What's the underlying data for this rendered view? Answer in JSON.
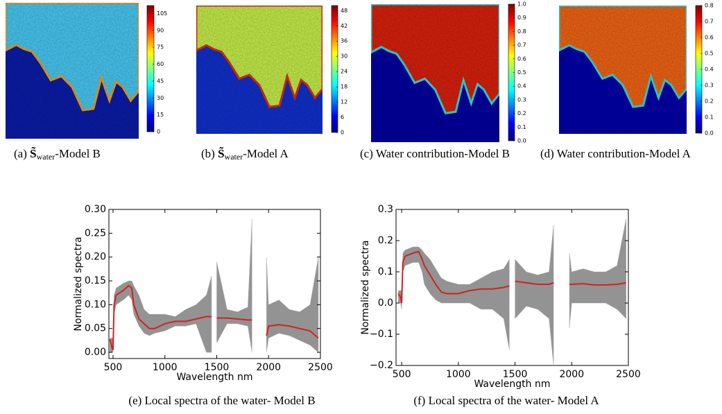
{
  "panels": [
    {
      "caption": {
        "label": "(a)",
        "symbol": "S̃",
        "subscript": "water",
        "text": "-Model B"
      },
      "colorbar": {
        "lim": [
          0,
          112
        ],
        "ticks": [
          0,
          15,
          30,
          45,
          60,
          75,
          90,
          105
        ]
      }
    },
    {
      "caption": {
        "label": "(b)",
        "symbol": "S̃",
        "subscript": "water",
        "text": "-Model A"
      },
      "colorbar": {
        "lim": [
          0,
          50
        ],
        "ticks": [
          0,
          6,
          12,
          18,
          24,
          30,
          36,
          42,
          48
        ]
      }
    },
    {
      "caption": {
        "label": "(c)",
        "text": "Water contribution-Model B"
      },
      "colorbar": {
        "lim": [
          0,
          1
        ],
        "ticks": [
          {
            "value": 0,
            "label": "0.0"
          },
          0.1,
          0.2,
          0.3,
          0.4,
          0.5,
          0.6,
          0.7,
          0.8,
          0.9,
          {
            "value": 1,
            "label": "1.0"
          }
        ]
      }
    },
    {
      "caption": {
        "label": "(d)",
        "text": "Water contribution-Model A"
      },
      "colorbar": {
        "lim": [
          0,
          0.8
        ],
        "ticks": [
          {
            "value": 0,
            "label": "0.0"
          },
          0.1,
          0.2,
          0.3,
          0.4,
          0.5,
          0.6,
          0.7,
          0.8
        ]
      }
    }
  ],
  "chart_data": [
    {
      "type": "line",
      "caption": "(e) Local spectra of the water- Model B",
      "xlabel": "Wavelength nm",
      "ylabel": "Normalized spectra",
      "xlim": [
        460,
        2500
      ],
      "ylim": [
        -0.013,
        0.3
      ],
      "xticks": [
        500,
        1000,
        1500,
        2000,
        2500
      ],
      "yticks": [
        {
          "value": 0,
          "label": "0.00"
        },
        {
          "value": 0.05,
          "label": "0.05"
        },
        {
          "value": 0.1,
          "label": "0.10"
        },
        {
          "value": 0.15,
          "label": "0.15"
        },
        {
          "value": 0.2,
          "label": "0.20"
        },
        {
          "value": 0.25,
          "label": "0.25"
        },
        {
          "value": 0.3,
          "label": "0.30"
        }
      ],
      "x": [
        470,
        490,
        500,
        510,
        530,
        600,
        650,
        680,
        700,
        750,
        800,
        850,
        900,
        1000,
        1100,
        1200,
        1300,
        1400,
        1450,
        1475,
        1500,
        1600,
        1700,
        1800,
        1840,
        1900,
        1980,
        2000,
        2100,
        2200,
        2300,
        2400,
        2480
      ],
      "band": {
        "color": "#808080",
        "upper": [
          0.03,
          0.03,
          0.03,
          0.12,
          0.135,
          0.145,
          0.15,
          0.15,
          0.14,
          0.12,
          0.09,
          0.08,
          0.08,
          0.08,
          0.075,
          0.09,
          0.1,
          0.12,
          0.16,
          null,
          0.19,
          0.09,
          0.085,
          0.095,
          0.28,
          null,
          0.2,
          0.1,
          0.11,
          0.09,
          0.085,
          0.1,
          0.2
        ],
        "lower": [
          0.0,
          0.0,
          0.0,
          0.08,
          0.1,
          0.11,
          0.12,
          0.11,
          0.08,
          0.055,
          0.04,
          0.035,
          0.04,
          0.045,
          0.055,
          0.055,
          0.06,
          0.0,
          0.0,
          null,
          0.02,
          0.06,
          0.06,
          0.055,
          0.0,
          null,
          0.0,
          0.03,
          0.04,
          0.035,
          0.025,
          0.015,
          0.0
        ]
      },
      "series": [
        {
          "color": "#d42020",
          "values": [
            0.027,
            0.01,
            0.005,
            0.1,
            0.12,
            0.13,
            0.14,
            0.135,
            0.1,
            0.07,
            0.06,
            0.05,
            0.05,
            0.06,
            0.065,
            0.065,
            0.07,
            0.075,
            0.075,
            null,
            0.072,
            0.072,
            0.07,
            0.068,
            0.068,
            null,
            0.035,
            0.055,
            0.058,
            0.055,
            0.05,
            0.045,
            0.03
          ]
        }
      ]
    },
    {
      "type": "line",
      "caption": "(f) Local spectra of the water- Model A",
      "xlabel": "Wavelength nm",
      "ylabel": "Normalized spectra",
      "xlim": [
        450,
        2500
      ],
      "ylim": [
        -0.2,
        0.3
      ],
      "xticks": [
        500,
        1000,
        1500,
        2000,
        2500
      ],
      "yticks": [
        {
          "value": -0.2,
          "label": "−0.2"
        },
        {
          "value": -0.1,
          "label": "−0.1"
        },
        {
          "value": 0,
          "label": "0.0"
        },
        0.1,
        0.2,
        0.3
      ],
      "x": [
        470,
        490,
        500,
        510,
        530,
        600,
        650,
        680,
        700,
        750,
        800,
        850,
        900,
        1000,
        1100,
        1200,
        1300,
        1400,
        1450,
        1475,
        1500,
        1600,
        1700,
        1800,
        1840,
        1900,
        1980,
        2000,
        2100,
        2200,
        2300,
        2400,
        2480
      ],
      "band": {
        "color": "#808080",
        "upper": [
          0.04,
          0.04,
          0.04,
          0.16,
          0.17,
          0.18,
          0.18,
          0.17,
          0.16,
          0.14,
          0.11,
          0.08,
          0.07,
          0.06,
          0.06,
          0.08,
          0.1,
          0.11,
          0.14,
          null,
          0.14,
          0.1,
          0.09,
          0.1,
          0.25,
          null,
          0.16,
          0.1,
          0.11,
          0.1,
          0.1,
          0.12,
          0.27
        ],
        "lower": [
          0.0,
          0.0,
          -0.02,
          0.1,
          0.12,
          0.13,
          0.13,
          0.1,
          0.06,
          0.03,
          0.01,
          0.0,
          0.0,
          0.0,
          0.0,
          -0.02,
          -0.02,
          -0.05,
          -0.15,
          null,
          -0.05,
          -0.01,
          -0.02,
          -0.05,
          -0.2,
          null,
          -0.08,
          0.0,
          0.0,
          0.0,
          0.0,
          -0.02,
          -0.05
        ]
      },
      "series": [
        {
          "color": "#d42020",
          "values": [
            0.03,
            0.02,
            0.0,
            0.13,
            0.15,
            0.16,
            0.165,
            0.14,
            0.12,
            0.09,
            0.06,
            0.035,
            0.03,
            0.03,
            0.04,
            0.045,
            0.045,
            0.05,
            0.055,
            null,
            0.07,
            0.065,
            0.06,
            0.06,
            0.065,
            null,
            0.06,
            0.06,
            0.062,
            0.058,
            0.058,
            0.06,
            0.065
          ]
        }
      ]
    }
  ]
}
